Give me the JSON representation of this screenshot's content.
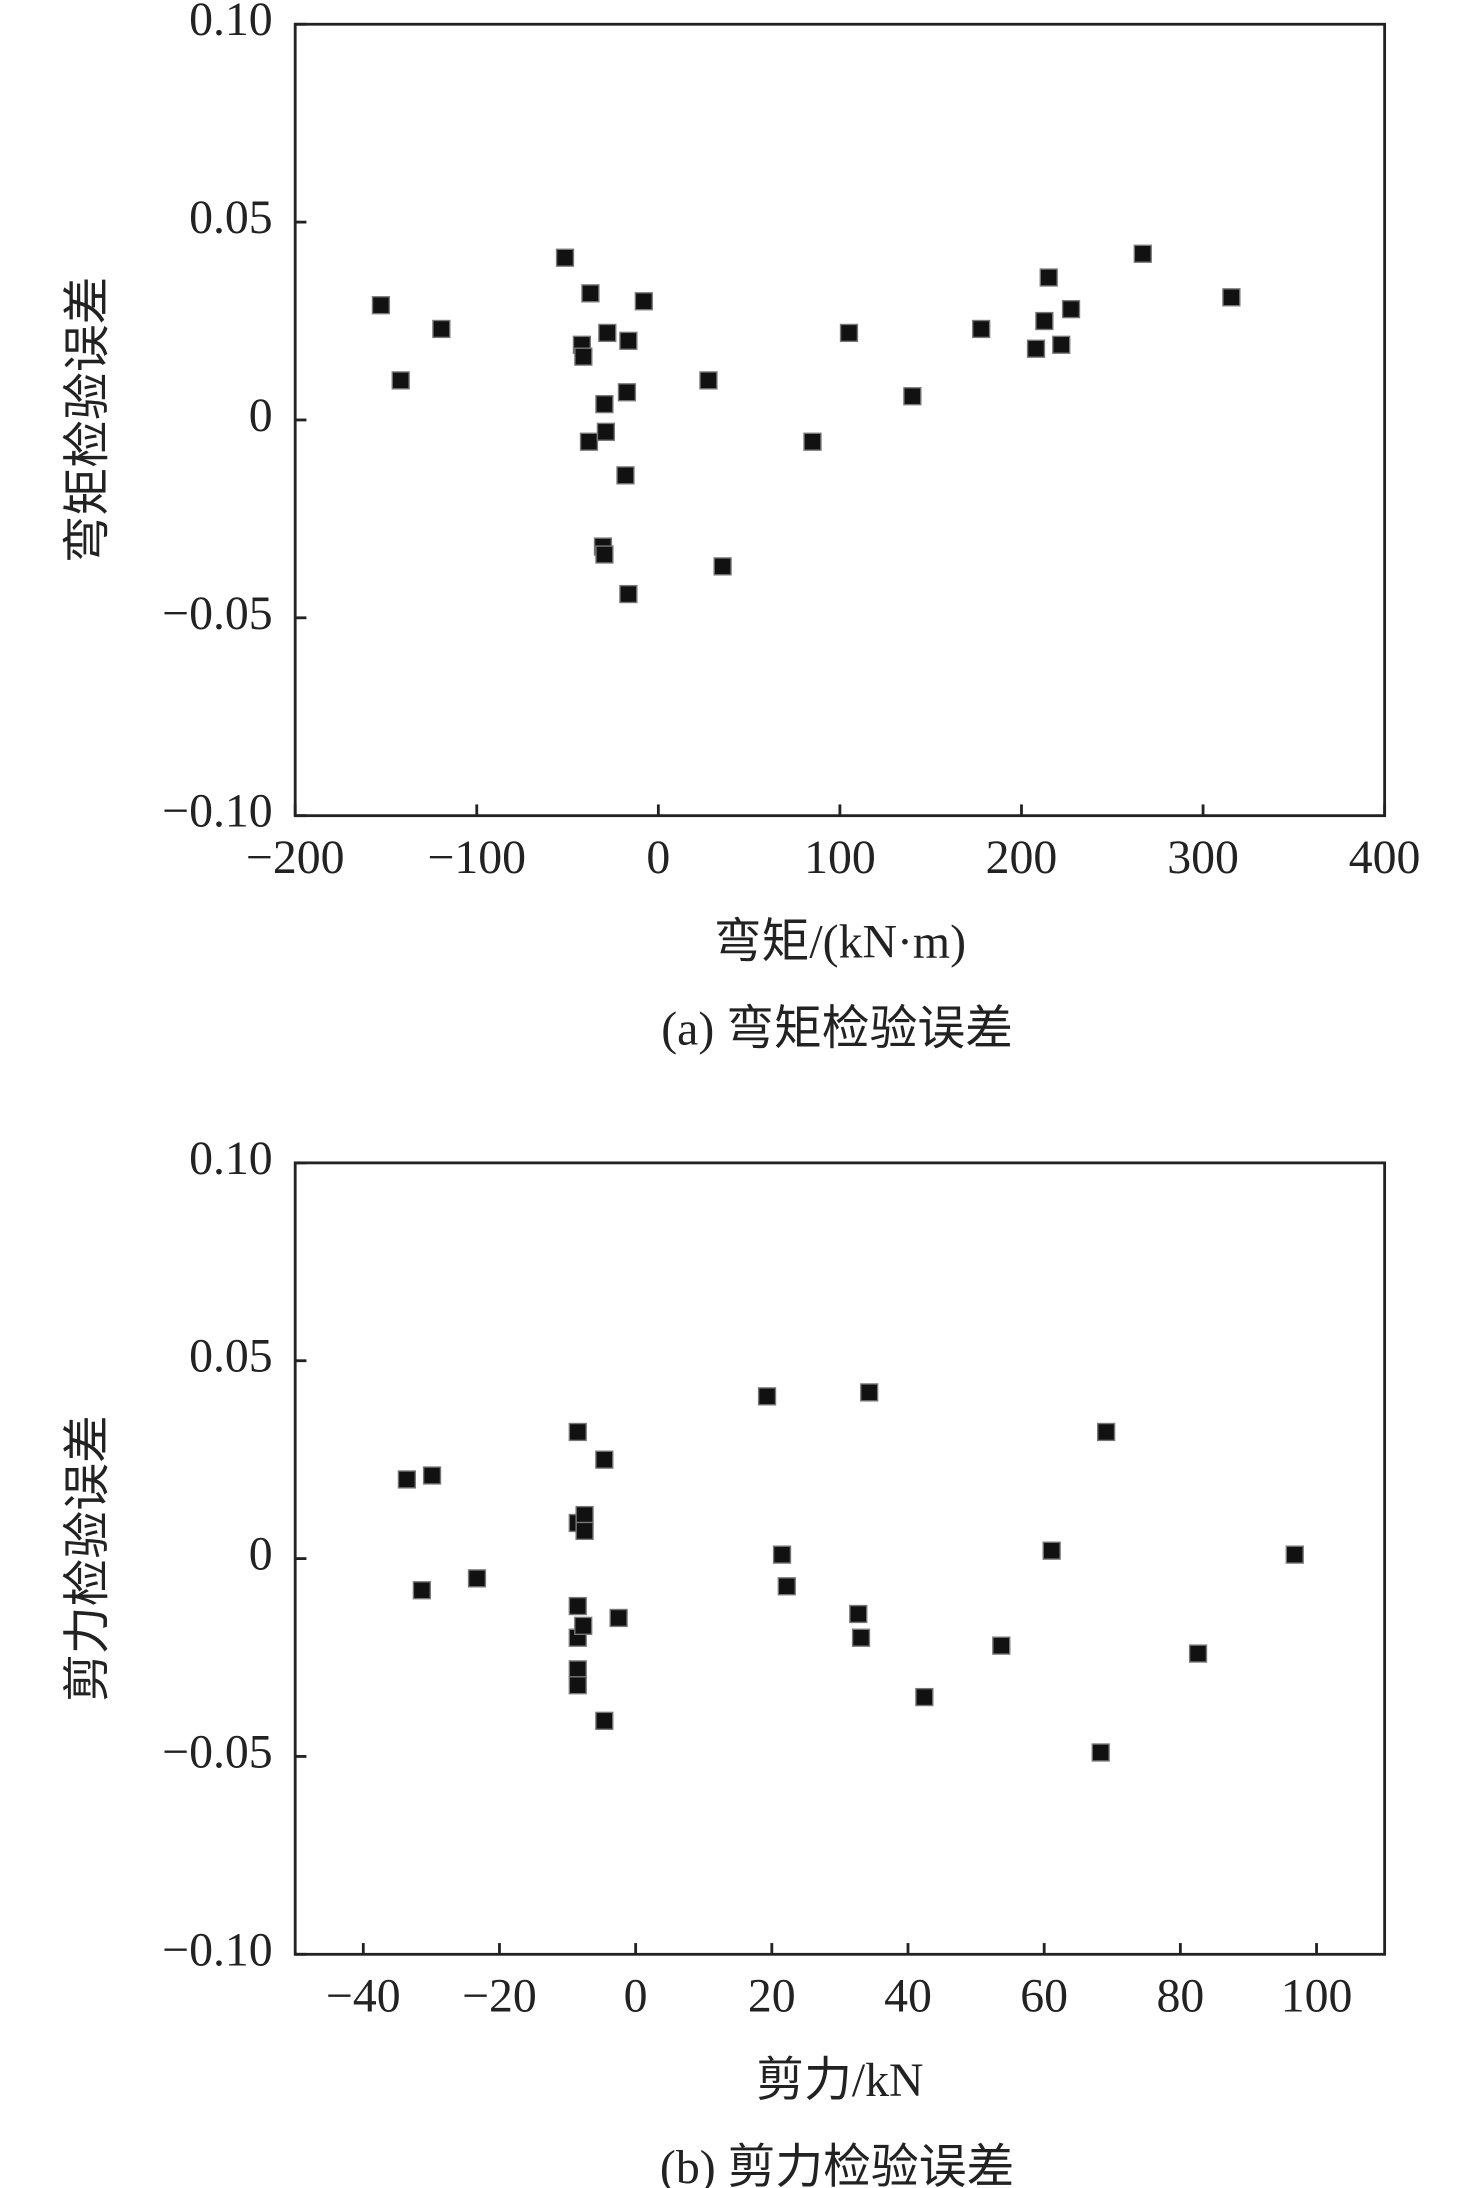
{
  "chart_data": [
    {
      "type": "scatter",
      "caption": "(a) 弯矩检验误差",
      "x_label": "弯矩/(kN·m)",
      "y_label": "弯矩检验误差",
      "color": "#111111",
      "xlim": [
        -200,
        400
      ],
      "ylim": [
        -0.1,
        0.1
      ],
      "xticks": [
        {
          "value": -200,
          "label": "−200"
        },
        {
          "value": -100,
          "label": "−100"
        },
        0,
        100,
        200,
        300,
        400
      ],
      "yticks": [
        {
          "value": -0.1,
          "label": "−0.10"
        },
        {
          "value": -0.05,
          "label": "−0.05"
        },
        0,
        0.05,
        {
          "value": 0.1,
          "label": "0.10"
        }
      ],
      "x": [
        -152.8,
        -141.9,
        -119.5,
        -51.4,
        -37.4,
        -42.1,
        -41.3,
        -28.1,
        -16.5,
        -8.0,
        -29.7,
        -17.3,
        -38.2,
        -28.9,
        -18.1,
        -30.5,
        -29.7,
        -16.5,
        27.6,
        35.4,
        84.9,
        105.0,
        139.9,
        177.8,
        208.0,
        212.6,
        215.0,
        221.9,
        227.3,
        266.8,
        315.6
      ],
      "values": [
        0.029,
        0.01,
        0.023,
        0.041,
        0.032,
        0.019,
        0.016,
        0.022,
        0.02,
        0.03,
        0.004,
        0.007,
        -0.0055,
        -0.003,
        -0.014,
        -0.032,
        -0.034,
        -0.044,
        0.01,
        -0.037,
        -0.0055,
        0.022,
        0.006,
        0.023,
        0.018,
        0.025,
        0.036,
        0.019,
        0.028,
        0.042,
        0.031
      ]
    },
    {
      "type": "scatter",
      "caption": "(b) 剪力检验误差",
      "x_label": "剪力/kN",
      "y_label": "剪力检验误差",
      "color": "#111111",
      "xlim": [
        -50,
        110
      ],
      "ylim": [
        -0.1,
        0.1
      ],
      "xticks": [
        {
          "value": -40,
          "label": "−40"
        },
        {
          "value": -20,
          "label": "−20"
        },
        0,
        20,
        40,
        60,
        80,
        100
      ],
      "yticks": [
        {
          "value": -0.1,
          "label": "−0.10"
        },
        {
          "value": -0.05,
          "label": "−0.05"
        },
        0,
        0.05,
        {
          "value": 0.1,
          "label": "0.10"
        }
      ],
      "x": [
        -33.6,
        -29.9,
        -31.4,
        -23.3,
        -8.5,
        -4.6,
        -8.5,
        -7.5,
        -7.5,
        -8.5,
        -8.5,
        -7.7,
        -8.5,
        -8.5,
        -2.5,
        -4.6,
        19.3,
        34.3,
        21.5,
        22.2,
        32.7,
        33.1,
        42.4,
        53.7,
        61.1,
        69.1,
        68.3,
        82.6,
        96.8
      ],
      "values": [
        0.02,
        0.021,
        -0.008,
        -0.005,
        0.032,
        0.025,
        0.009,
        0.011,
        0.007,
        -0.012,
        -0.02,
        -0.017,
        -0.028,
        -0.032,
        -0.015,
        -0.041,
        0.041,
        0.042,
        0.001,
        -0.007,
        -0.014,
        -0.02,
        -0.035,
        -0.022,
        0.002,
        0.032,
        -0.049,
        -0.024,
        0.001
      ]
    }
  ]
}
